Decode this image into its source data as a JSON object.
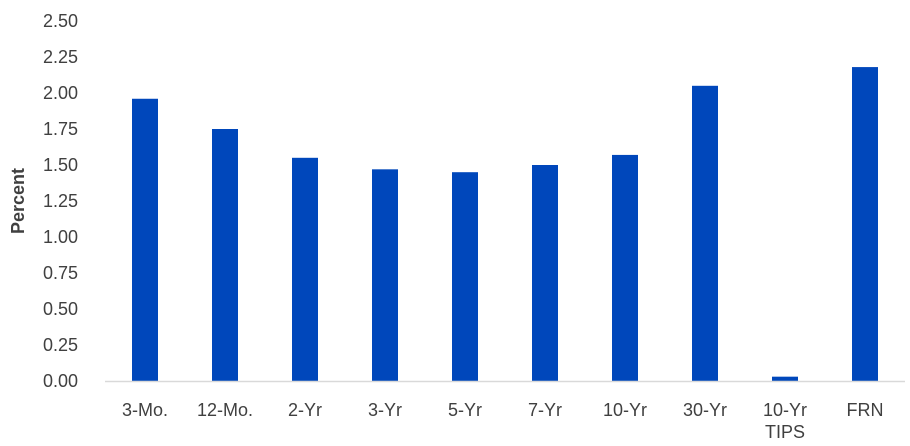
{
  "chart_data": {
    "type": "bar",
    "title": "",
    "xlabel": "",
    "ylabel": "Percent",
    "ylim": [
      0,
      2.5
    ],
    "yticks": [
      "0.00",
      "0.25",
      "0.50",
      "0.75",
      "1.00",
      "1.25",
      "1.50",
      "1.75",
      "2.00",
      "2.25",
      "2.50"
    ],
    "categories": [
      [
        "3-Mo."
      ],
      [
        "12-Mo."
      ],
      [
        "2-Yr"
      ],
      [
        "3-Yr"
      ],
      [
        "5-Yr"
      ],
      [
        "7-Yr"
      ],
      [
        "10-Yr"
      ],
      [
        "30-Yr"
      ],
      [
        "10-Yr",
        "TIPS"
      ],
      [
        "FRN"
      ]
    ],
    "values": [
      1.96,
      1.75,
      1.55,
      1.47,
      1.45,
      1.5,
      1.57,
      2.05,
      0.03,
      2.18
    ],
    "grid": false,
    "legend": "none",
    "bar_color": "#0047BB",
    "axis_color": "#D9D9D9",
    "text_color": "#404040"
  }
}
